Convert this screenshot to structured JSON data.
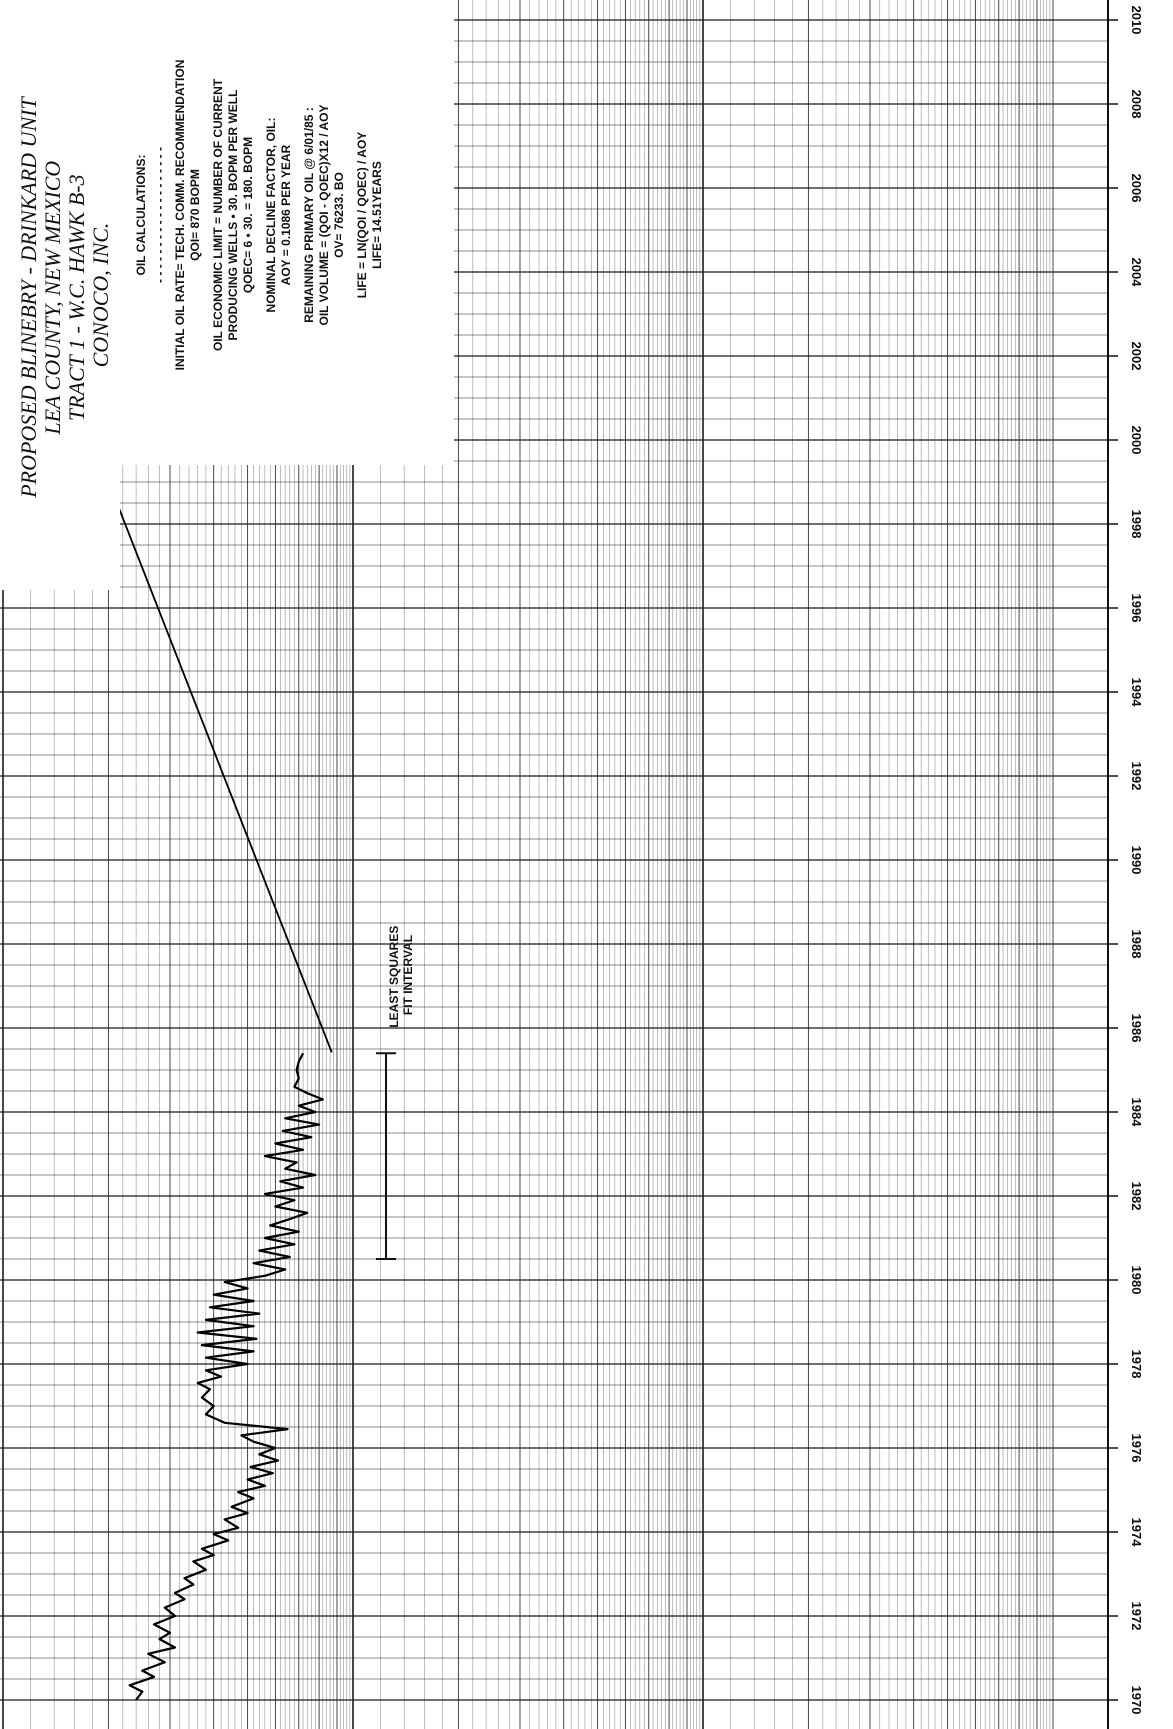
{
  "chart_data": {
    "type": "line",
    "orientation": "x axis runs top-to-bottom along the right edge; page is rotated 90 degrees",
    "title_lines": [
      "PROPOSED BLINEBRY - DRINKARD UNIT",
      "LEA COUNTY, NEW MEXICO",
      "TRACT 1 - W.C. HAWK B-3",
      "CONOCO, INC."
    ],
    "xlabel": "",
    "ylabel": "",
    "x_ticks": [
      "1970",
      "1972",
      "1974",
      "1976",
      "1978",
      "1980",
      "1982",
      "1984",
      "1986",
      "1988",
      "1990",
      "1992",
      "1994",
      "1996",
      "1998",
      "2000",
      "2002",
      "2004",
      "2006",
      "2008",
      "2010"
    ],
    "xlim": [
      1970,
      2010
    ],
    "y_scale": "log",
    "grid": true,
    "calculations": {
      "heading": "OIL CALCULATIONS:",
      "divider": "- - - - - - - - - - - - - - - - - - -",
      "lines": [
        "INITIAL OIL RATE= TECH. COMM. RECOMMENDATION",
        "QOI= 870 BOPM",
        "",
        "OIL ECONOMIC LIMIT = NUMBER OF CURRENT",
        "PRODUCING WELLS • 30. BOPM PER WELL",
        "QOEC= 6 • 30. = 180. BOPM",
        "",
        "NOMINAL DECLINE FACTOR, OIL:",
        "AOY = 0.1086 PER YEAR",
        "",
        "REMAINING PRIMARY OIL @ 6/01/85 :",
        "OIL VOLUME = (QOI - QOEC)X12 / AOY",
        "OV= 76233. BO",
        "",
        "LIFE = LN(QOI / QOEC) / AOY",
        "LIFE= 14.51YEARS"
      ]
    },
    "annotation_lines": [
      "LEAST SQUARES",
      "FIT INTERVAL"
    ],
    "fit_interval": [
      1980.5,
      1985.4
    ],
    "series": [
      {
        "values": [
          [
            1970.0,
            240
          ],
          [
            1970.2,
            250
          ],
          [
            1970.35,
            230
          ],
          [
            1970.55,
            270
          ],
          [
            1970.7,
            250
          ],
          [
            1970.9,
            290
          ],
          [
            1971.1,
            260
          ],
          [
            1971.25,
            310
          ],
          [
            1971.45,
            280
          ],
          [
            1971.6,
            300
          ],
          [
            1971.8,
            270
          ],
          [
            1972.0,
            310
          ],
          [
            1972.2,
            290
          ],
          [
            1972.4,
            330
          ],
          [
            1972.55,
            310
          ],
          [
            1972.75,
            350
          ],
          [
            1972.9,
            330
          ],
          [
            1973.1,
            380
          ],
          [
            1973.3,
            350
          ],
          [
            1973.45,
            400
          ],
          [
            1973.6,
            370
          ],
          [
            1973.8,
            440
          ],
          [
            1973.95,
            400
          ],
          [
            1974.1,
            470
          ],
          [
            1974.3,
            430
          ],
          [
            1974.45,
            500
          ],
          [
            1974.6,
            450
          ],
          [
            1974.8,
            520
          ],
          [
            1974.95,
            470
          ],
          [
            1975.1,
            560
          ],
          [
            1975.25,
            500
          ],
          [
            1975.4,
            590
          ],
          [
            1975.55,
            510
          ],
          [
            1975.7,
            610
          ],
          [
            1975.85,
            540
          ],
          [
            1976.0,
            600
          ],
          [
            1976.15,
            520
          ],
          [
            1976.3,
            480
          ],
          [
            1976.45,
            650
          ],
          [
            1976.6,
            430
          ],
          [
            1976.8,
            380
          ],
          [
            1977.0,
            400
          ],
          [
            1977.2,
            370
          ],
          [
            1977.4,
            390
          ],
          [
            1977.55,
            360
          ],
          [
            1977.7,
            420
          ],
          [
            1977.85,
            380
          ],
          [
            1978.0,
            500
          ],
          [
            1978.15,
            380
          ],
          [
            1978.3,
            520
          ],
          [
            1978.45,
            370
          ],
          [
            1978.6,
            530
          ],
          [
            1978.75,
            360
          ],
          [
            1978.9,
            520
          ],
          [
            1979.05,
            380
          ],
          [
            1979.2,
            540
          ],
          [
            1979.35,
            390
          ],
          [
            1979.5,
            520
          ],
          [
            1979.65,
            400
          ],
          [
            1979.8,
            500
          ],
          [
            1979.95,
            430
          ],
          [
            1980.1,
            560
          ],
          [
            1980.25,
            640
          ],
          [
            1980.4,
            520
          ],
          [
            1980.55,
            660
          ],
          [
            1980.7,
            540
          ],
          [
            1980.85,
            680
          ],
          [
            1981.0,
            560
          ],
          [
            1981.15,
            700
          ],
          [
            1981.3,
            580
          ],
          [
            1981.45,
            660
          ],
          [
            1981.6,
            740
          ],
          [
            1981.75,
            600
          ],
          [
            1981.9,
            680
          ],
          [
            1982.05,
            560
          ],
          [
            1982.2,
            720
          ],
          [
            1982.35,
            620
          ],
          [
            1982.5,
            780
          ],
          [
            1982.65,
            640
          ],
          [
            1982.8,
            690
          ],
          [
            1982.95,
            560
          ],
          [
            1983.1,
            720
          ],
          [
            1983.25,
            600
          ],
          [
            1983.4,
            760
          ],
          [
            1983.55,
            630
          ],
          [
            1983.7,
            800
          ],
          [
            1983.85,
            640
          ],
          [
            1984.0,
            780
          ],
          [
            1984.15,
            700
          ],
          [
            1984.3,
            820
          ],
          [
            1984.45,
            740
          ],
          [
            1984.6,
            680
          ],
          [
            1984.8,
            700
          ],
          [
            1985.0,
            690
          ],
          [
            1985.2,
            700
          ],
          [
            1985.4,
            720
          ]
        ]
      },
      {
        "values": [
          [
            1985.42,
            870
          ],
          [
            2000.0,
            180
          ]
        ]
      }
    ]
  }
}
